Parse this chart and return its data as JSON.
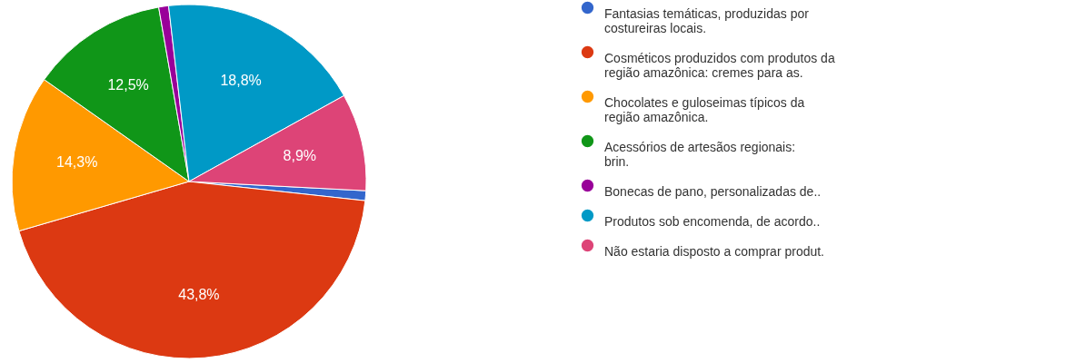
{
  "chart_data": {
    "type": "pie",
    "categories": [
      "Fantasias temáticas, produzidas por costureiras locais.",
      "Cosméticos produzidos com produtos da região amazônica: cremes para as.",
      "Chocolates e guloseimas típicos da região amazônica.",
      "Acessórios de artesãos regionais: brin.",
      "Bonecas de pano, personalizadas de..",
      "Produtos sob encomenda, de acordo..",
      "Não estaria disposto a comprar produt."
    ],
    "values": [
      0.9,
      43.8,
      14.3,
      12.5,
      0.9,
      18.8,
      8.9
    ],
    "value_labels": [
      null,
      "43,8%",
      "14,3%",
      "12,5%",
      null,
      "18,8%",
      "8,9%"
    ],
    "colors": [
      "#3366cc",
      "#dc3912",
      "#ff9900",
      "#109618",
      "#990099",
      "#0099c6",
      "#dd4477"
    ],
    "legend": "right"
  }
}
